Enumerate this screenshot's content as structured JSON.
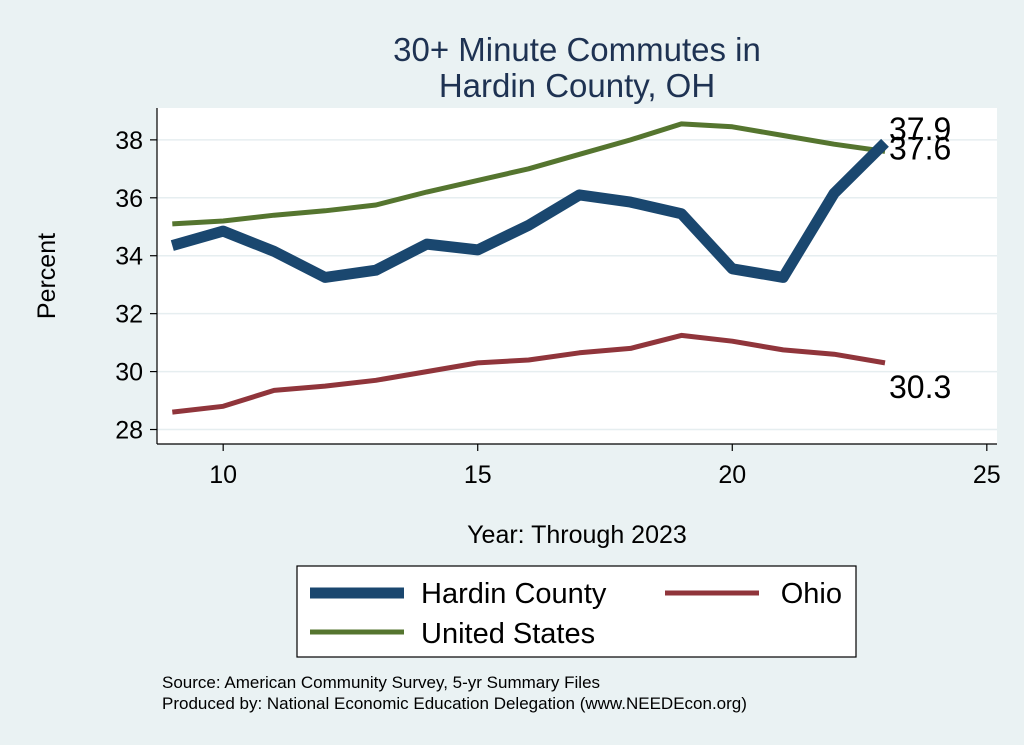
{
  "chart_data": {
    "type": "line",
    "title_lines": [
      "30+ Minute Commutes in",
      "Hardin County, OH"
    ],
    "xlabel": "Year: Through 2023",
    "ylabel": "Percent",
    "xlim": [
      8.7,
      25.2
    ],
    "ylim": [
      27.5,
      39.1
    ],
    "xticks": [
      10,
      15,
      20,
      25
    ],
    "yticks": [
      28,
      30,
      32,
      34,
      36,
      38
    ],
    "grid": true,
    "legend_position": "bottom",
    "series": [
      {
        "name": "Hardin County",
        "color": "#1a476f",
        "weight": "heavy",
        "x": [
          9,
          10,
          11,
          12,
          13,
          14,
          15,
          16,
          17,
          18,
          19,
          20,
          21,
          22,
          23
        ],
        "values": [
          34.35,
          34.85,
          34.15,
          33.25,
          33.5,
          34.4,
          34.2,
          35.05,
          36.1,
          35.85,
          35.45,
          33.55,
          33.25,
          36.15,
          37.9
        ],
        "end_label": "37.9"
      },
      {
        "name": "Ohio",
        "color": "#90353b",
        "weight": "normal",
        "x": [
          9,
          10,
          11,
          12,
          13,
          14,
          15,
          16,
          17,
          18,
          19,
          20,
          21,
          22,
          23
        ],
        "values": [
          28.6,
          28.8,
          29.35,
          29.5,
          29.7,
          30.0,
          30.3,
          30.4,
          30.65,
          30.8,
          31.25,
          31.05,
          30.75,
          30.6,
          30.3
        ],
        "end_label": "30.3"
      },
      {
        "name": "United States",
        "color": "#55752f",
        "weight": "normal",
        "x": [
          9,
          10,
          11,
          12,
          13,
          14,
          15,
          16,
          17,
          18,
          19,
          20,
          21,
          22,
          23
        ],
        "values": [
          35.1,
          35.2,
          35.4,
          35.55,
          35.75,
          36.2,
          36.6,
          37.0,
          37.5,
          38.0,
          38.55,
          38.45,
          38.15,
          37.85,
          37.6
        ],
        "end_label": "37.6"
      }
    ],
    "source_lines": [
      "Source: American Community Survey, 5-yr Summary Files",
      "Produced by: National Economic Education Delegation (www.NEEDEcon.org)"
    ]
  }
}
